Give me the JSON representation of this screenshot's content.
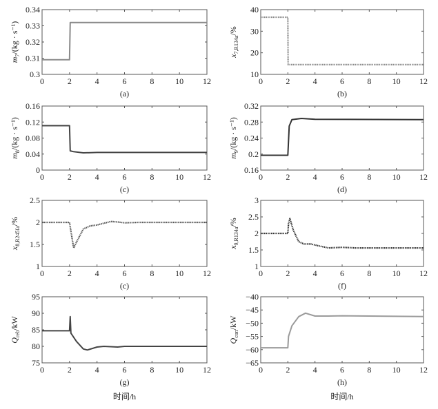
{
  "chart_data": [
    {
      "type": "line",
      "panel": "(a)",
      "ylabel": {
        "sym": "m",
        "sub": "7",
        "unit": "/(kg · s⁻¹)"
      },
      "ylim": [
        0.3,
        0.34
      ],
      "yticks": [
        "0.3",
        "0.31",
        "0.32",
        "0.33",
        "0.34"
      ],
      "ytick_values": [
        0.3,
        0.31,
        0.32,
        0.33,
        0.34
      ],
      "series": [
        {
          "name": "m7",
          "color": "#8a8a8a",
          "style": "solid",
          "x": [
            0,
            2,
            2.05,
            12
          ],
          "y": [
            0.309,
            0.309,
            0.332,
            0.332
          ]
        }
      ]
    },
    {
      "type": "line",
      "panel": "(b)",
      "ylabel": {
        "sym": "x",
        "sub": "7,R134a",
        "unit": "/%"
      },
      "ylim": [
        10,
        40
      ],
      "yticks": [
        "10",
        "20",
        "30",
        "40"
      ],
      "ytick_values": [
        10,
        20,
        30,
        40
      ],
      "series": [
        {
          "name": "x7",
          "color": "#8a8a8a",
          "style": "dotted",
          "x": [
            0,
            2,
            2.02,
            12
          ],
          "y": [
            36.5,
            36.5,
            14.5,
            14.5
          ]
        }
      ]
    },
    {
      "type": "line",
      "panel": "(c)",
      "ylabel": {
        "sym": "m",
        "sub": "8",
        "unit": "/(kg · s⁻¹)"
      },
      "ylim": [
        0,
        0.16
      ],
      "yticks": [
        "0",
        "0.04",
        "0.08",
        "0.12",
        "0.16"
      ],
      "ytick_values": [
        0,
        0.04,
        0.08,
        0.12,
        0.16
      ],
      "series": [
        {
          "name": "m8",
          "color": "#444444",
          "style": "solid",
          "x": [
            0,
            2,
            2.05,
            2.3,
            3,
            4,
            12
          ],
          "y": [
            0.111,
            0.111,
            0.048,
            0.046,
            0.043,
            0.044,
            0.044
          ]
        }
      ]
    },
    {
      "type": "line",
      "panel": "(d)",
      "ylabel": {
        "sym": "m",
        "sub": "9",
        "unit": "/(kg · s⁻¹)"
      },
      "ylim": [
        0.16,
        0.32
      ],
      "yticks": [
        "0.16",
        "0.2",
        "0.24",
        "0.28",
        "0.32"
      ],
      "ytick_values": [
        0.16,
        0.2,
        0.24,
        0.28,
        0.32
      ],
      "series": [
        {
          "name": "m9",
          "color": "#333333",
          "style": "solid",
          "x": [
            0,
            2,
            2.1,
            2.3,
            3,
            4,
            12
          ],
          "y": [
            0.197,
            0.197,
            0.27,
            0.286,
            0.289,
            0.287,
            0.286
          ]
        }
      ]
    },
    {
      "type": "line",
      "panel": "(c)",
      "ylabel": {
        "sym": "x",
        "sub": "8,R245fa",
        "unit": "/%"
      },
      "ylim": [
        1,
        2.5
      ],
      "yticks": [
        "1",
        "1.5",
        "2",
        "2.5"
      ],
      "ytick_values": [
        1,
        1.5,
        2,
        2.5
      ],
      "series": [
        {
          "name": "x8",
          "color": "#555555",
          "style": "dotted",
          "x": [
            0,
            2,
            2.1,
            2.3,
            2.5,
            3,
            3.5,
            4,
            5,
            5.5,
            6,
            7,
            12
          ],
          "y": [
            2,
            2,
            1.8,
            1.42,
            1.55,
            1.85,
            1.92,
            1.94,
            2.02,
            2.01,
            1.99,
            2,
            2
          ]
        }
      ]
    },
    {
      "type": "line",
      "panel": "(f)",
      "ylabel": {
        "sym": "x",
        "sub": "9,R134a",
        "unit": "/%"
      },
      "ylim": [
        1,
        3
      ],
      "yticks": [
        "1",
        "1.5",
        "2",
        "2.5",
        "3"
      ],
      "ytick_values": [
        1,
        1.5,
        2,
        2.5,
        3
      ],
      "series": [
        {
          "name": "x9",
          "color": "#333333",
          "style": "dotted",
          "x": [
            0,
            2,
            2.05,
            2.15,
            2.4,
            2.8,
            3.2,
            3.7,
            4.3,
            5,
            6,
            7,
            12
          ],
          "y": [
            2,
            2,
            2.3,
            2.45,
            2.1,
            1.75,
            1.68,
            1.68,
            1.62,
            1.56,
            1.58,
            1.56,
            1.56
          ]
        }
      ]
    },
    {
      "type": "line",
      "panel": "(g)",
      "ylabel": {
        "sym": "Q",
        "sub": "reb",
        "unit": "/kW"
      },
      "ylim": [
        75,
        95
      ],
      "yticks": [
        "75",
        "80",
        "85",
        "90",
        "95"
      ],
      "ytick_values": [
        75,
        80,
        85,
        90,
        95
      ],
      "series": [
        {
          "name": "Qreb",
          "color": "#444444",
          "style": "solid",
          "x": [
            0,
            2,
            2.05,
            2.1,
            2.5,
            3,
            3.3,
            4,
            4.5,
            5.5,
            6,
            12
          ],
          "y": [
            84.7,
            84.7,
            89,
            84,
            81.5,
            79.2,
            78.9,
            79.8,
            80,
            79.8,
            80,
            80
          ]
        }
      ]
    },
    {
      "type": "line",
      "panel": "(h)",
      "ylabel": {
        "sym": "Q",
        "sub": "con",
        "unit": "/kW"
      },
      "ylim": [
        -65,
        -40
      ],
      "yticks": [
        "−65",
        "−60",
        "−55",
        "−50",
        "−45",
        "−40"
      ],
      "ytick_values": [
        -65,
        -60,
        -55,
        -50,
        -45,
        -40
      ],
      "series": [
        {
          "name": "Qcon",
          "color": "#9a9a9a",
          "style": "solid",
          "x": [
            0,
            2,
            2.05,
            2.3,
            2.8,
            3.3,
            4,
            5,
            6,
            12
          ],
          "y": [
            -59.3,
            -59.3,
            -55,
            -51,
            -47.5,
            -46.2,
            -47.3,
            -47.3,
            -47.2,
            -47.5
          ]
        }
      ]
    }
  ],
  "xlim": [
    0,
    12
  ],
  "xticks": [
    "0",
    "2",
    "4",
    "6",
    "8",
    "10",
    "12"
  ],
  "xlabel": "时间/h"
}
